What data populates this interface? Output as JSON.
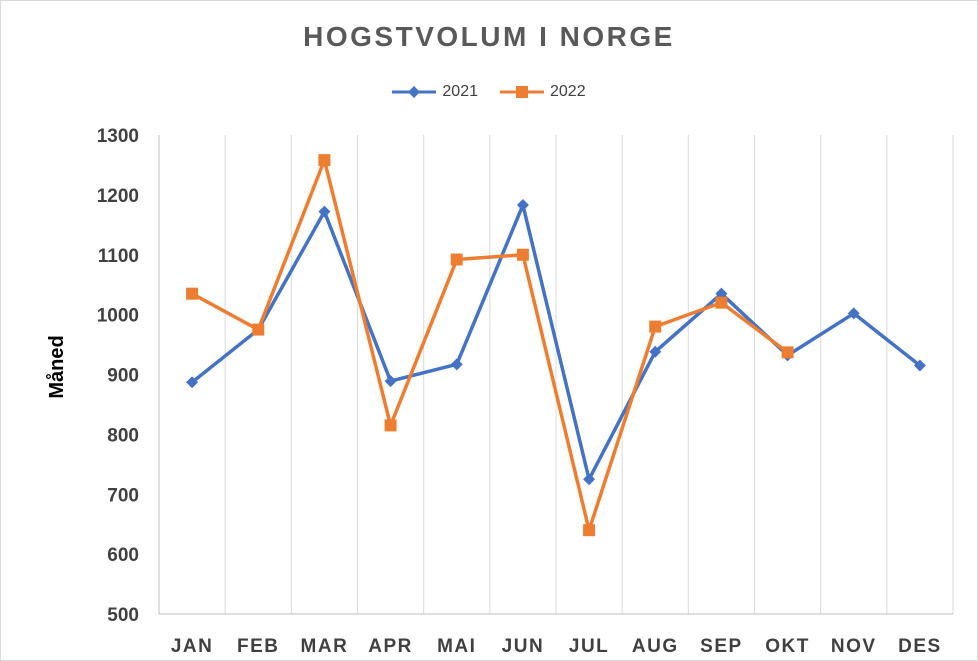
{
  "chart_data": {
    "type": "line",
    "title": "HOGSTVOLUM I NORGE",
    "xlabel": "",
    "ylabel": "Måned",
    "categories": [
      "JAN",
      "FEB",
      "MAR",
      "APR",
      "MAI",
      "JUN",
      "JUL",
      "AUG",
      "SEP",
      "OKT",
      "NOV",
      "DES"
    ],
    "ylim": [
      500,
      1300
    ],
    "yticks": [
      500,
      600,
      700,
      800,
      900,
      1000,
      1100,
      1200,
      1300
    ],
    "grid": "vertical",
    "legend_position": "top",
    "series": [
      {
        "name": "2021",
        "color": "#4472C4",
        "marker": "diamond",
        "values": [
          887,
          975,
          1172,
          889,
          917,
          1183,
          725,
          938,
          1035,
          932,
          1002,
          915
        ]
      },
      {
        "name": "2022",
        "color": "#ED7D31",
        "marker": "square",
        "values": [
          1035,
          975,
          1258,
          815,
          1092,
          1100,
          640,
          980,
          1020,
          937,
          null,
          null
        ]
      }
    ]
  }
}
